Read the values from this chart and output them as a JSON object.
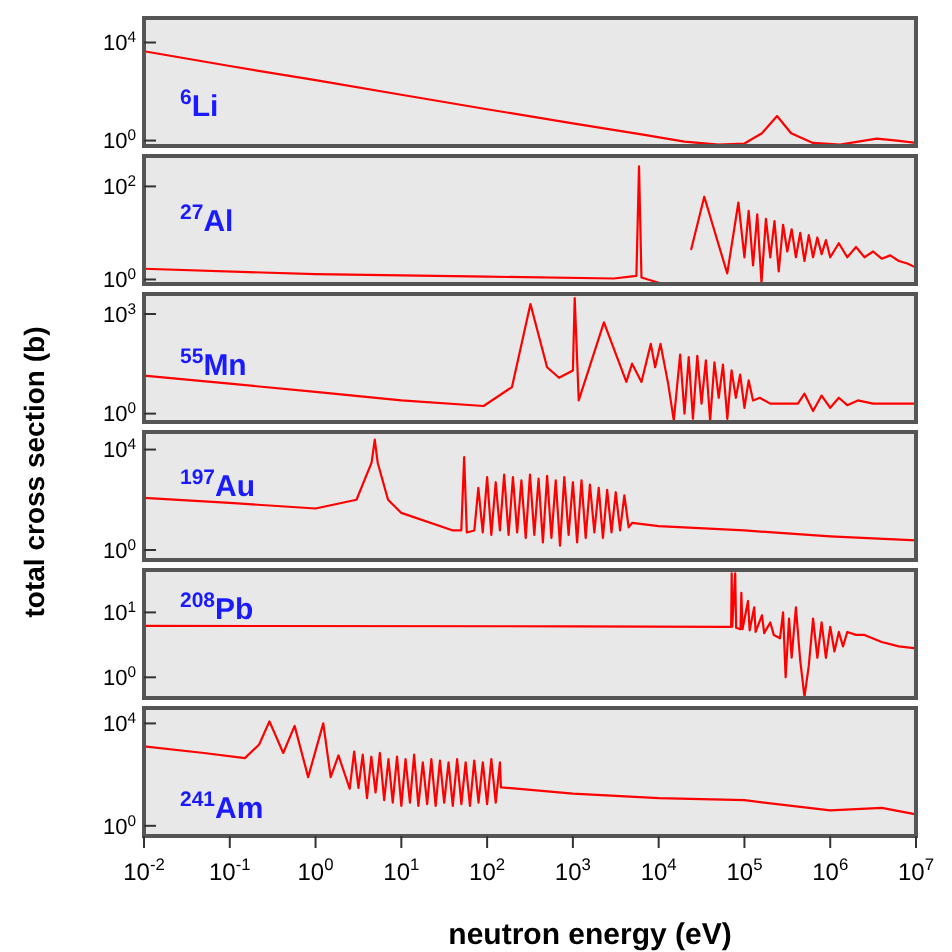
{
  "chart_data": [
    {
      "type": "line",
      "title": "$^{6}$Li",
      "log": "xy",
      "tick_labels": "y",
      "xlim": [
        0.01,
        10000000
      ],
      "ylim": [
        0.6,
        100000
      ],
      "yticks": [
        {
          "value": 1,
          "label": "10$^{0}$"
        },
        {
          "value": 10000,
          "label": "10$^{4}$"
        }
      ],
      "series": [
        {
          "color": "#ff0000",
          "x": [
            0.01,
            0.1,
            1,
            10,
            100,
            1000,
            6300,
            20000,
            50000,
            100000,
            160000,
            240000,
            350000,
            630000,
            1300000,
            2500000,
            3500000,
            6000000,
            10000000
          ],
          "values": [
            4400,
            1100,
            290,
            74,
            19,
            5,
            1.8,
            0.9,
            0.68,
            0.76,
            2,
            10,
            2,
            0.8,
            0.68,
            1,
            1.2,
            1,
            0.8
          ]
        }
      ]
    },
    {
      "type": "line",
      "title": "$^{27}$Al",
      "log": "xy",
      "tick_labels": "y",
      "xlim": [
        0.01,
        10000000
      ],
      "ylim": [
        0.8,
        450
      ],
      "yticks": [
        {
          "value": 1,
          "label": "10$^{0}$"
        },
        {
          "value": 100,
          "label": "10$^{2}$"
        }
      ],
      "series": [
        {
          "color": "#ff0000",
          "x": [
            0.01,
            1,
            100,
            3000,
            5500,
            5900,
            6300,
            10000,
            20000,
            23000,
            24000,
            34000,
            63000,
            85000,
            100000,
            112000,
            126000,
            141000,
            158000,
            178000,
            200000,
            224000,
            251000,
            282000,
            316000,
            355000,
            398000,
            447000,
            501000,
            562000,
            631000,
            708000,
            794000,
            891000,
            1000000,
            1260000,
            1580000,
            2000000,
            2510000,
            3160000,
            3980000,
            5010000,
            6310000,
            7940000,
            10000000
          ],
          "values": [
            1.7,
            1.3,
            1.15,
            1.05,
            1.2,
            270,
            1.1,
            0.85,
            null,
            null,
            4.5,
            60,
            1.35,
            45,
            3,
            30,
            2,
            25,
            0.85,
            20,
            3,
            18,
            1.5,
            15,
            4,
            12,
            3,
            10,
            2.5,
            9,
            3,
            8,
            3.5,
            7,
            3,
            6,
            3,
            5,
            3,
            4,
            2.8,
            3.3,
            2.5,
            2.2,
            1.8
          ]
        }
      ]
    },
    {
      "type": "line",
      "title": "$^{55}$Mn",
      "log": "xy",
      "tick_labels": "y",
      "xlim": [
        0.01,
        10000000
      ],
      "ylim": [
        0.56,
        4000
      ],
      "yticks": [
        {
          "value": 1,
          "label": "10$^{0}$"
        },
        {
          "value": 1000,
          "label": "10$^{3}$"
        }
      ],
      "series": [
        {
          "color": "#ff0000",
          "x": [
            0.01,
            0.1,
            1,
            10,
            91,
            195,
            320,
            500,
            690,
            1000,
            1050,
            1170,
            2300,
            4200,
            4900,
            6300,
            8100,
            9100,
            10500,
            12900,
            15000,
            17800,
            20000,
            22400,
            25100,
            28200,
            31600,
            35500,
            39800,
            44700,
            50100,
            56200,
            63100,
            70800,
            79400,
            89100,
            100000,
            112000,
            126000,
            151000,
            200000,
            420000,
            501000,
            631000,
            794000,
            1000000,
            1260000,
            1580000,
            2100000,
            3160000,
            10000000
          ],
          "values": [
            14,
            8,
            4.5,
            2.5,
            1.7,
            6.3,
            2000,
            25,
            12,
            20,
            3000,
            2.5,
            560,
            9,
            32,
            9,
            126,
            25,
            126,
            8,
            0.63,
            60,
            1,
            50,
            0.7,
            55,
            2,
            40,
            0.6,
            35,
            3,
            30,
            0.7,
            20,
            3,
            15,
            1.5,
            10,
            2.5,
            3,
            2,
            2,
            4,
            1.2,
            3.5,
            1.5,
            3,
            1.8,
            2.5,
            2,
            2
          ]
        }
      ]
    },
    {
      "type": "line",
      "title": "$^{197}$Au",
      "ylabel": "total cross section (b)",
      "log": "xy",
      "tick_labels": "y",
      "xlim": [
        0.01,
        10000000
      ],
      "ylim": [
        0.4,
        50000
      ],
      "yticks": [
        {
          "value": 1,
          "label": "10$^{0}$"
        },
        {
          "value": 10000,
          "label": "10$^{4}$"
        }
      ],
      "series": [
        {
          "color": "#ff0000",
          "x": [
            0.01,
            0.1,
            1,
            3,
            4.5,
            4.9,
            5.3,
            7,
            10,
            40,
            50,
            54,
            58,
            71,
            79,
            89,
            100,
            112,
            126,
            141,
            158,
            178,
            200,
            224,
            251,
            282,
            316,
            355,
            398,
            447,
            501,
            562,
            631,
            708,
            794,
            891,
            1000,
            1120,
            1260,
            1410,
            1580,
            1780,
            2000,
            2240,
            2510,
            2820,
            3160,
            3550,
            3980,
            4470,
            4900,
            10000,
            100000,
            1000000,
            10000000
          ],
          "values": [
            120,
            75,
            45,
            100,
            3000,
            25000,
            3000,
            100,
            30,
            6,
            6,
            5000,
            5,
            6,
            300,
            5,
            800,
            4,
            500,
            6,
            1000,
            4,
            800,
            5,
            600,
            3,
            1000,
            4,
            700,
            2,
            900,
            3,
            600,
            1.5,
            800,
            4,
            500,
            2,
            600,
            3,
            400,
            5,
            300,
            3,
            250,
            5,
            200,
            6,
            150,
            8,
            12,
            9,
            6,
            3.5,
            2.4
          ]
        }
      ]
    },
    {
      "type": "line",
      "title": "$^{208}$Pb",
      "log": "xy",
      "tick_labels": "y",
      "xlim": [
        0.01,
        10000000
      ],
      "ylim": [
        0.48,
        45
      ],
      "yticks": [
        {
          "value": 1,
          "label": "10$^{0}$"
        },
        {
          "value": 10,
          "label": "10$^{1}$"
        }
      ],
      "series": [
        {
          "color": "#ff0000",
          "x": [
            0.01,
            1000,
            63000,
            70000,
            71000,
            72000,
            78000,
            80000,
            90000,
            92000,
            95000,
            110000,
            115000,
            130000,
            135000,
            160000,
            170000,
            200000,
            220000,
            260000,
            282000,
            302000,
            331000,
            355000,
            398000,
            447000,
            501000,
            562000,
            631000,
            708000,
            794000,
            891000,
            1000000,
            1120000,
            1260000,
            1410000,
            1580000,
            2000000,
            2510000,
            3980000,
            6310000,
            10000000
          ],
          "values": [
            6.2,
            6.1,
            6,
            6,
            40,
            6,
            40,
            5.8,
            5.5,
            20,
            5.5,
            15,
            5.3,
            12,
            5,
            9,
            4.8,
            7,
            4.5,
            4,
            10,
            1,
            8,
            2,
            12,
            1.8,
            0.5,
            1.5,
            8,
            2,
            7,
            2,
            6,
            2.5,
            5,
            3,
            5,
            4.5,
            4.5,
            3.5,
            3,
            2.8
          ]
        }
      ]
    },
    {
      "type": "line",
      "title": "$^{241}$Am",
      "xlabel": "neutron energy (eV)",
      "log": "xy",
      "xlim": [
        0.01,
        10000000
      ],
      "ylim": [
        0.4,
        40000
      ],
      "xticks": [
        {
          "value": 0.01,
          "label": "10$^{-2}$"
        },
        {
          "value": 0.1,
          "label": "10$^{-1}$"
        },
        {
          "value": 1,
          "label": "10$^{0}$"
        },
        {
          "value": 10,
          "label": "10$^{1}$"
        },
        {
          "value": 100,
          "label": "10$^{2}$"
        },
        {
          "value": 1000,
          "label": "10$^{3}$"
        },
        {
          "value": 10000,
          "label": "10$^{4}$"
        },
        {
          "value": 100000,
          "label": "10$^{5}$"
        },
        {
          "value": 1000000,
          "label": "10$^{6}$"
        },
        {
          "value": 10000000,
          "label": "10$^{7}$"
        }
      ],
      "yticks": [
        {
          "value": 1,
          "label": "10$^{0}$"
        },
        {
          "value": 10000,
          "label": "10$^{4}$"
        }
      ],
      "series": [
        {
          "color": "#ff0000",
          "x": [
            0.01,
            0.05,
            0.15,
            0.22,
            0.29,
            0.42,
            0.57,
            0.82,
            1.23,
            1.5,
            1.85,
            2.5,
            2.82,
            3.16,
            3.55,
            3.98,
            4.47,
            5.01,
            5.62,
            6.31,
            7.08,
            7.94,
            8.91,
            10,
            11.2,
            12.6,
            14.1,
            15.8,
            17.8,
            20,
            22.4,
            25.1,
            28.2,
            31.6,
            35.5,
            39.8,
            44.7,
            50.1,
            56.2,
            63.1,
            70.8,
            79.4,
            89.1,
            100,
            112,
            126,
            141,
            145,
            1000,
            10000,
            100000,
            1000000,
            4000000,
            10000000
          ],
          "values": [
            1260,
            700,
            440,
            1500,
            12000,
            700,
            8000,
            80,
            10000,
            80,
            560,
            28,
            800,
            30,
            600,
            12,
            500,
            20,
            700,
            10,
            400,
            8,
            500,
            6,
            400,
            8,
            600,
            6,
            300,
            7,
            400,
            6,
            350,
            8,
            300,
            6,
            400,
            7,
            300,
            6,
            350,
            8,
            300,
            7,
            400,
            8,
            300,
            32,
            18,
            12,
            10,
            4,
            5,
            2.8
          ]
        }
      ]
    }
  ]
}
